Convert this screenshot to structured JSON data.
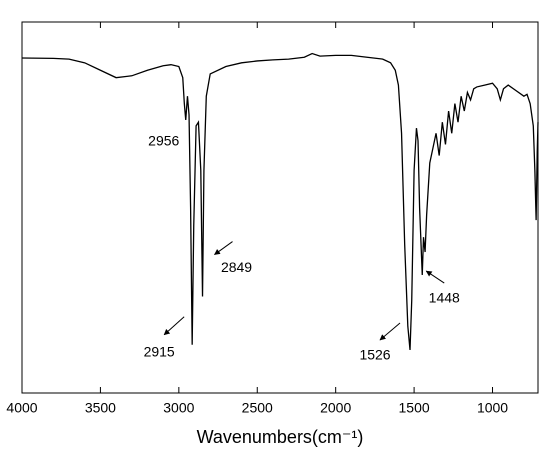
{
  "chart_data": {
    "type": "line",
    "x_label": "Wavenumbers(cm⁻¹)",
    "xlim": [
      4000,
      710
    ],
    "xticks": [
      4000,
      3500,
      3000,
      2500,
      2000,
      1500,
      1000
    ],
    "ylim": [
      0,
      100
    ],
    "series": [
      {
        "color": "#000000",
        "x": [
          4000,
          3800,
          3700,
          3600,
          3500,
          3400,
          3300,
          3200,
          3100,
          3050,
          3000,
          2975,
          2965,
          2956,
          2945,
          2935,
          2925,
          2915,
          2905,
          2890,
          2875,
          2860,
          2849,
          2840,
          2825,
          2800,
          2700,
          2600,
          2500,
          2400,
          2300,
          2200,
          2150,
          2100,
          2000,
          1900,
          1800,
          1700,
          1650,
          1620,
          1600,
          1580,
          1560,
          1540,
          1526,
          1515,
          1500,
          1485,
          1475,
          1465,
          1448,
          1440,
          1430,
          1420,
          1400,
          1380,
          1360,
          1340,
          1320,
          1300,
          1280,
          1260,
          1240,
          1220,
          1200,
          1180,
          1160,
          1140,
          1120,
          1100,
          1050,
          1000,
          970,
          950,
          930,
          900,
          850,
          800,
          780,
          760,
          740,
          730,
          722,
          715,
          710
        ],
        "values": [
          90.3,
          90.2,
          90,
          89,
          87,
          85,
          85.5,
          87,
          88.2,
          88.5,
          88,
          85,
          78,
          73.6,
          80,
          75,
          50,
          13,
          45,
          72,
          73,
          60,
          26,
          60,
          80,
          86,
          88,
          89,
          89.5,
          89.8,
          90,
          90.5,
          91.5,
          90.8,
          91,
          91,
          90.5,
          90,
          89,
          87,
          83,
          70,
          40,
          18,
          11.6,
          25,
          60,
          71.4,
          68,
          50,
          31.8,
          42,
          38,
          48,
          62,
          66,
          70,
          64,
          73,
          67,
          76,
          70,
          78,
          73,
          80,
          76,
          81,
          79,
          82,
          82.5,
          83,
          83.5,
          82,
          79,
          82,
          83,
          81.5,
          80,
          80.5,
          78,
          72,
          60,
          46.6,
          65,
          73
        ]
      }
    ],
    "annotations": [
      {
        "text": "2956",
        "x": 2956,
        "y": 73.6
      },
      {
        "text": "2915",
        "x": 2915,
        "y": 13
      },
      {
        "text": "2849",
        "x": 2849,
        "y": 26
      },
      {
        "text": "1526",
        "x": 1526,
        "y": 11.6
      },
      {
        "text": "1448",
        "x": 1448,
        "y": 31.8
      }
    ]
  }
}
